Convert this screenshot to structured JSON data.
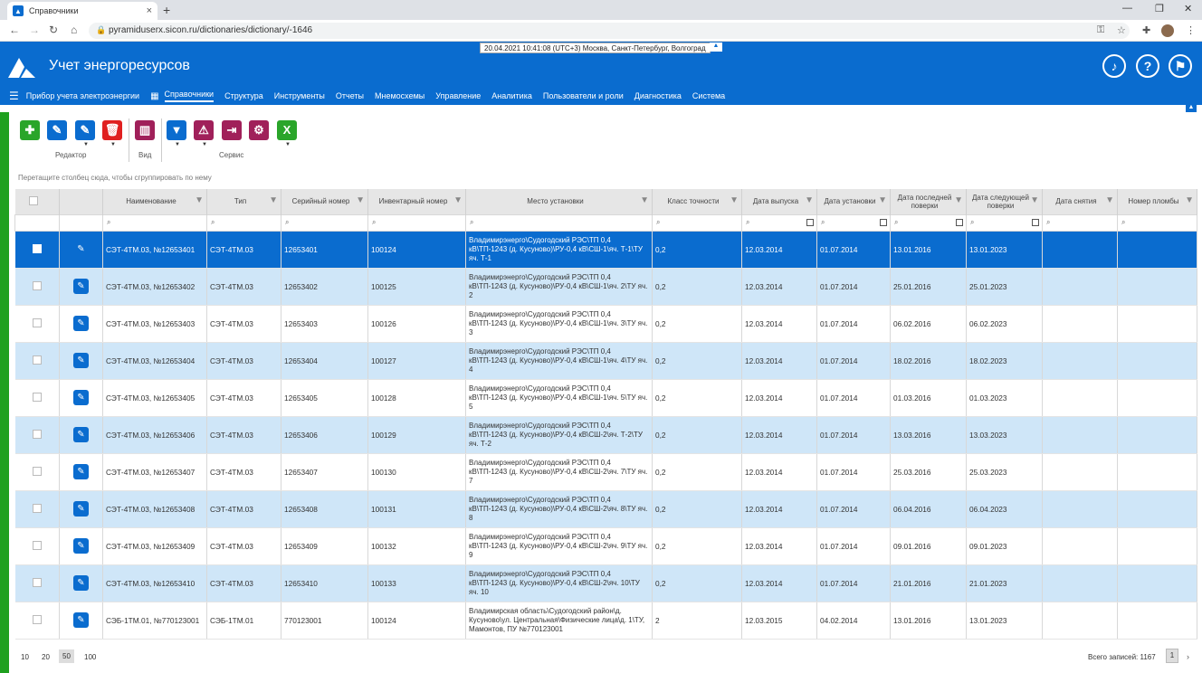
{
  "browser": {
    "tab_title": "Справочники",
    "url": "pyramiduserx.sicon.ru/dictionaries/dictionary/-1646"
  },
  "header": {
    "datetime": "20.04.2021 10:41:08 (UTC+3) Москва, Санкт-Петербург, Волгоград",
    "title": "Учет энергоресурсов"
  },
  "menu": [
    "Прибор учета электроэнергии",
    "Справочники",
    "Структура",
    "Инструменты",
    "Отчеты",
    "Мнемосхемы",
    "Управление",
    "Аналитика",
    "Пользователи и роли",
    "Диагностика",
    "Система"
  ],
  "toolbar": {
    "editor_label": "Редактор",
    "view_label": "Вид",
    "service_label": "Сервис"
  },
  "group_hint": "Перетащите столбец сюда, чтобы сгруппировать по нему",
  "columns": {
    "name": "Наименование",
    "type": "Тип",
    "serial": "Серийный номер",
    "inventory": "Инвентарный номер",
    "place": "Место установки",
    "accuracy": "Класс точности",
    "made": "Дата выпуска",
    "installed": "Дата установки",
    "last_check": "Дата последней поверки",
    "next_check": "Дата следующей поверки",
    "removed": "Дата снятия",
    "seal": "Номер пломбы"
  },
  "rows": [
    [
      "СЭТ-4ТМ.03, №12653401",
      "СЭТ-4ТМ.03",
      "12653401",
      "100124",
      "Владимирэнерго\\Судогодский РЭС\\ТП 0,4 кВ\\ТП-1243 (д. Кусуново)\\РУ-0,4 кВ\\СШ-1\\яч. Т-1\\ТУ яч. Т-1",
      "0,2",
      "12.03.2014",
      "01.07.2014",
      "13.01.2016",
      "13.01.2023"
    ],
    [
      "СЭТ-4ТМ.03, №12653402",
      "СЭТ-4ТМ.03",
      "12653402",
      "100125",
      "Владимирэнерго\\Судогодский РЭС\\ТП 0,4 кВ\\ТП-1243 (д. Кусуново)\\РУ-0,4 кВ\\СШ-1\\яч. 2\\ТУ яч. 2",
      "0,2",
      "12.03.2014",
      "01.07.2014",
      "25.01.2016",
      "25.01.2023"
    ],
    [
      "СЭТ-4ТМ.03, №12653403",
      "СЭТ-4ТМ.03",
      "12653403",
      "100126",
      "Владимирэнерго\\Судогодский РЭС\\ТП 0,4 кВ\\ТП-1243 (д. Кусуново)\\РУ-0,4 кВ\\СШ-1\\яч. 3\\ТУ яч. 3",
      "0,2",
      "12.03.2014",
      "01.07.2014",
      "06.02.2016",
      "06.02.2023"
    ],
    [
      "СЭТ-4ТМ.03, №12653404",
      "СЭТ-4ТМ.03",
      "12653404",
      "100127",
      "Владимирэнерго\\Судогодский РЭС\\ТП 0,4 кВ\\ТП-1243 (д. Кусуново)\\РУ-0,4 кВ\\СШ-1\\яч. 4\\ТУ яч. 4",
      "0,2",
      "12.03.2014",
      "01.07.2014",
      "18.02.2016",
      "18.02.2023"
    ],
    [
      "СЭТ-4ТМ.03, №12653405",
      "СЭТ-4ТМ.03",
      "12653405",
      "100128",
      "Владимирэнерго\\Судогодский РЭС\\ТП 0,4 кВ\\ТП-1243 (д. Кусуново)\\РУ-0,4 кВ\\СШ-1\\яч. 5\\ТУ яч. 5",
      "0,2",
      "12.03.2014",
      "01.07.2014",
      "01.03.2016",
      "01.03.2023"
    ],
    [
      "СЭТ-4ТМ.03, №12653406",
      "СЭТ-4ТМ.03",
      "12653406",
      "100129",
      "Владимирэнерго\\Судогодский РЭС\\ТП 0,4 кВ\\ТП-1243 (д. Кусуново)\\РУ-0,4 кВ\\СШ-2\\яч. Т-2\\ТУ яч. Т-2",
      "0,2",
      "12.03.2014",
      "01.07.2014",
      "13.03.2016",
      "13.03.2023"
    ],
    [
      "СЭТ-4ТМ.03, №12653407",
      "СЭТ-4ТМ.03",
      "12653407",
      "100130",
      "Владимирэнерго\\Судогодский РЭС\\ТП 0,4 кВ\\ТП-1243 (д. Кусуново)\\РУ-0,4 кВ\\СШ-2\\яч. 7\\ТУ яч. 7",
      "0,2",
      "12.03.2014",
      "01.07.2014",
      "25.03.2016",
      "25.03.2023"
    ],
    [
      "СЭТ-4ТМ.03, №12653408",
      "СЭТ-4ТМ.03",
      "12653408",
      "100131",
      "Владимирэнерго\\Судогодский РЭС\\ТП 0,4 кВ\\ТП-1243 (д. Кусуново)\\РУ-0,4 кВ\\СШ-2\\яч. 8\\ТУ яч. 8",
      "0,2",
      "12.03.2014",
      "01.07.2014",
      "06.04.2016",
      "06.04.2023"
    ],
    [
      "СЭТ-4ТМ.03, №12653409",
      "СЭТ-4ТМ.03",
      "12653409",
      "100132",
      "Владимирэнерго\\Судогодский РЭС\\ТП 0,4 кВ\\ТП-1243 (д. Кусуново)\\РУ-0,4 кВ\\СШ-2\\яч. 9\\ТУ яч. 9",
      "0,2",
      "12.03.2014",
      "01.07.2014",
      "09.01.2016",
      "09.01.2023"
    ],
    [
      "СЭТ-4ТМ.03, №12653410",
      "СЭТ-4ТМ.03",
      "12653410",
      "100133",
      "Владимирэнерго\\Судогодский РЭС\\ТП 0,4 кВ\\ТП-1243 (д. Кусуново)\\РУ-0,4 кВ\\СШ-2\\яч. 10\\ТУ яч. 10",
      "0,2",
      "12.03.2014",
      "01.07.2014",
      "21.01.2016",
      "21.01.2023"
    ],
    [
      "СЭБ-1ТМ.01, №770123001",
      "СЭБ-1ТМ.01",
      "770123001",
      "100124",
      "Владимирская область\\Судогодский район\\д. Кусуново\\ул. Центральная\\Физические лица\\д. 1\\ТУ, Мамонтов, ПУ №770123001",
      "2",
      "12.03.2015",
      "04.02.2014",
      "13.01.2016",
      "13.01.2023"
    ]
  ],
  "footer": {
    "page_sizes": [
      "10",
      "20",
      "50",
      "100"
    ],
    "total": "Всего записей: 1167",
    "page": "1"
  }
}
